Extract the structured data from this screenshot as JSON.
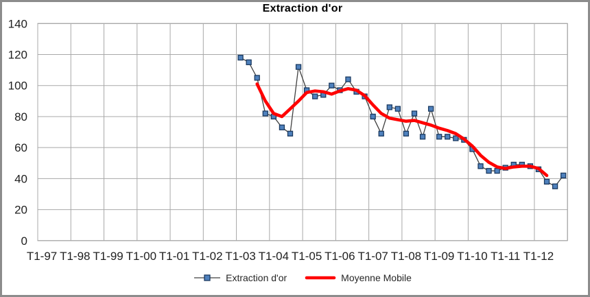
{
  "chart": {
    "title": "Extraction d'or",
    "legend_items": [
      {
        "label": "Extraction d'or"
      },
      {
        "label": "Moyenne Mobile"
      }
    ]
  },
  "colors": {
    "series_line": "#404040",
    "marker_fill": "#4f81bd",
    "marker_border": "#1b3a60",
    "moving_average": "#ff0000",
    "gridline": "#a8a8a8",
    "plot_border": "#808080",
    "axis_text": "#1f1f1f",
    "chart_frame": "#8c8c8c"
  },
  "chart_data": {
    "type": "line",
    "title": "Extraction d'or",
    "grid": true,
    "legend_position": "bottom",
    "x_axis": {
      "tick_labels": [
        "T1-97",
        "T1-98",
        "T1-99",
        "T1-00",
        "T1-01",
        "T1-02",
        "T1-03",
        "T1-04",
        "T1-05",
        "T1-06",
        "T1-07",
        "T1-08",
        "T1-09",
        "T1-10",
        "T1-11",
        "T1-12"
      ],
      "categories_per_tick": 4,
      "total_categories": 64
    },
    "y_axis": {
      "min": 0,
      "max": 140,
      "tick_step": 20,
      "ticks": [
        0,
        20,
        40,
        60,
        80,
        100,
        120,
        140
      ]
    },
    "series": [
      {
        "name": "Extraction d'or",
        "style": "line-with-square-markers",
        "start_category_index": 24,
        "x": [
          "T1-03",
          "T2-03",
          "T3-03",
          "T4-03",
          "T1-04",
          "T2-04",
          "T3-04",
          "T4-04",
          "T1-05",
          "T2-05",
          "T3-05",
          "T4-05",
          "T1-06",
          "T2-06",
          "T3-06",
          "T4-06",
          "T1-07",
          "T2-07",
          "T3-07",
          "T4-07",
          "T1-08",
          "T2-08",
          "T3-08",
          "T4-08",
          "T1-09",
          "T2-09",
          "T3-09",
          "T4-09",
          "T1-10",
          "T2-10",
          "T3-10",
          "T4-10",
          "T1-11",
          "T2-11",
          "T3-11",
          "T4-11",
          "T1-12",
          "T2-12",
          "T3-12",
          "T4-12"
        ],
        "values": [
          118,
          115,
          105,
          82,
          80,
          73,
          69,
          112,
          97,
          93,
          94,
          100,
          97,
          104,
          96,
          93,
          80,
          69,
          86,
          85,
          69,
          82,
          67,
          85,
          67,
          67,
          66,
          65,
          59,
          48,
          45,
          45,
          47,
          49,
          49,
          48,
          46,
          38,
          35,
          42
        ]
      },
      {
        "name": "Moyenne Mobile",
        "style": "thick-smooth-line",
        "start_category_index": 26,
        "x": [
          "T3-03",
          "T4-03",
          "T1-04",
          "T2-04",
          "T3-04",
          "T4-04",
          "T1-05",
          "T2-05",
          "T3-05",
          "T4-05",
          "T1-06",
          "T2-06",
          "T3-06",
          "T4-06",
          "T1-07",
          "T2-07",
          "T3-07",
          "T4-07",
          "T1-08",
          "T2-08",
          "T3-08",
          "T4-08",
          "T1-09",
          "T2-09",
          "T3-09",
          "T4-09",
          "T1-10",
          "T2-10",
          "T3-10",
          "T4-10",
          "T1-11",
          "T2-11",
          "T3-11",
          "T4-11",
          "T1-12",
          "T2-12"
        ],
        "values": [
          101,
          90,
          82,
          80,
          85,
          90,
          95.5,
          96.5,
          96,
          94.5,
          96.5,
          98,
          97,
          93.5,
          87.5,
          82,
          79,
          78,
          77,
          77.5,
          76,
          74.5,
          72.5,
          71,
          69,
          65.5,
          61,
          55,
          50.5,
          47.5,
          46.5,
          47.5,
          48,
          48,
          46.5,
          42
        ]
      }
    ]
  }
}
